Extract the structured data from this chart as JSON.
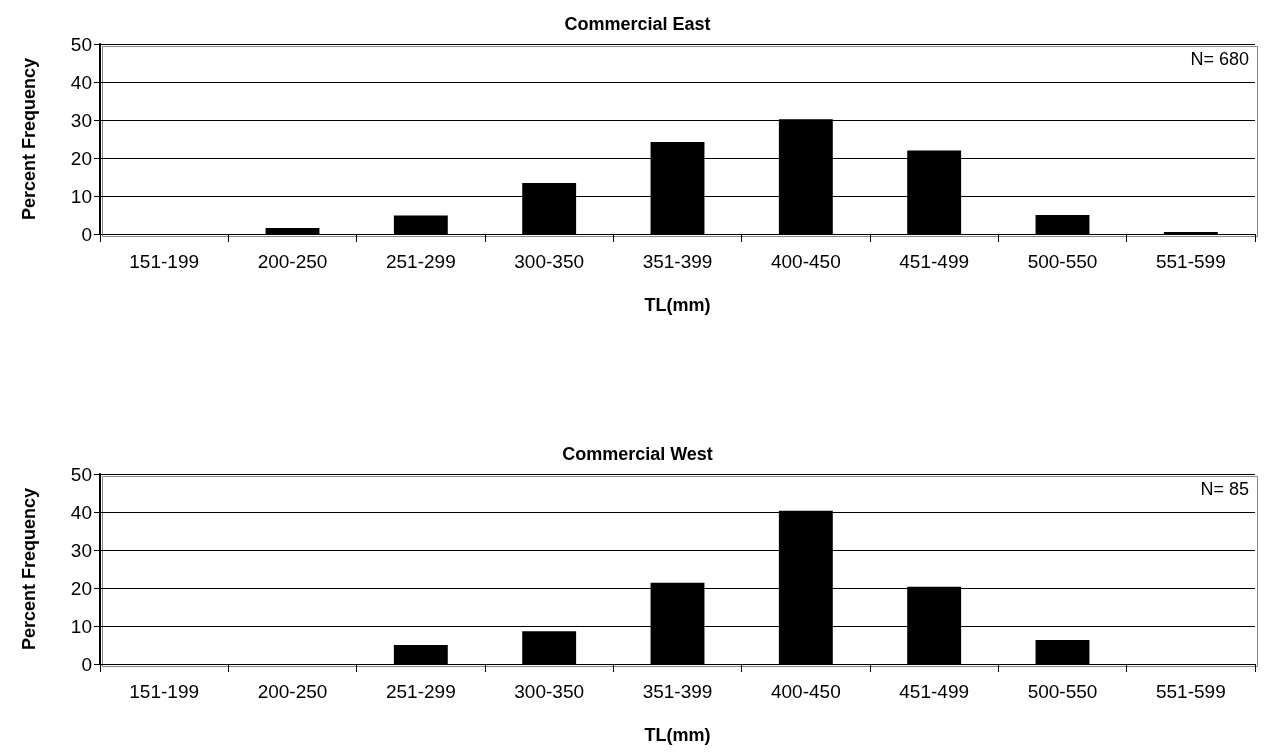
{
  "chart_data": [
    {
      "type": "bar",
      "title": "Commercial East",
      "xlabel": "TL(mm)",
      "ylabel": "Percent Frequency",
      "categories": [
        "151-199",
        "200-250",
        "251-299",
        "300-350",
        "351-399",
        "400-450",
        "451-499",
        "500-550",
        "551-599"
      ],
      "values": [
        0,
        1.6,
        4.9,
        13.4,
        24.2,
        30.2,
        22,
        5,
        0.5
      ],
      "color": "#000000",
      "ylim": [
        0,
        50
      ],
      "yticks": [
        0,
        10,
        20,
        30,
        40,
        50
      ],
      "grid": "y",
      "annotations": [
        "N= 680"
      ]
    },
    {
      "type": "bar",
      "title": "Commercial West",
      "xlabel": "TL(mm)",
      "ylabel": "Percent Frequency",
      "categories": [
        "151-199",
        "200-250",
        "251-299",
        "300-350",
        "351-399",
        "400-450",
        "451-499",
        "500-550",
        "551-599"
      ],
      "values": [
        0,
        0,
        5,
        8.6,
        21.4,
        40.3,
        20.3,
        6.3,
        0
      ],
      "color": "#000000",
      "ylim": [
        0,
        50
      ],
      "yticks": [
        0,
        10,
        20,
        30,
        40,
        50
      ],
      "grid": "y",
      "annotations": [
        "N= 85"
      ]
    }
  ]
}
